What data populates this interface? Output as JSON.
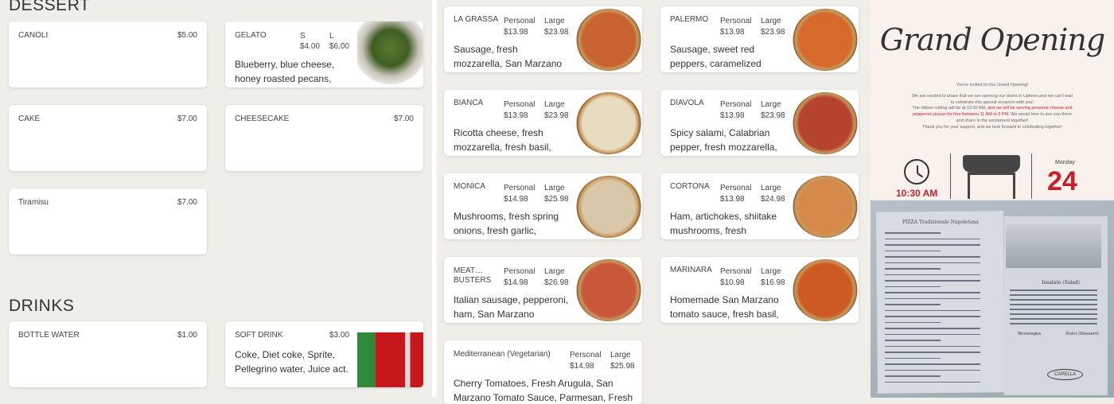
{
  "dessert": {
    "heading": "DESSERT",
    "items": [
      {
        "name": "CANOLI",
        "price": "$5.00"
      },
      {
        "name": "GELATO",
        "size_s": "S",
        "size_l": "L",
        "price_s": "$4.00",
        "price_l": "$6.00",
        "desc": "Blueberry, blue cheese, honey roasted pecans, spring mix,…"
      },
      {
        "name": "CAKE",
        "price": "$7.00"
      },
      {
        "name": "CHEESECAKE",
        "price": "$7.00"
      },
      {
        "name": "Tiramisu",
        "price": "$7.00"
      }
    ]
  },
  "drinks": {
    "heading": "DRINKS",
    "items": [
      {
        "name": "BOTTLE WATER",
        "price": "$1.00"
      },
      {
        "name": "SOFT DRINK",
        "price": "$3.00",
        "desc": "Coke, Diet coke, Sprite, Pellegrino water, Juice act."
      }
    ]
  },
  "pizzas": [
    {
      "name": "LA GRASSA",
      "p": "$13.98",
      "l": "$23.98",
      "desc": "Sausage, fresh mozzarella, San Marzano sauce, fresh…"
    },
    {
      "name": "PALERMO",
      "p": "$13.98",
      "l": "$23.98",
      "desc": "Sausage, sweet red peppers, caramelized Cipollini onion,…"
    },
    {
      "name": "BIANCA",
      "p": "$13.98",
      "l": "$23.98",
      "desc": "Ricotta cheese, fresh mozzarella, fresh basil, fresh…"
    },
    {
      "name": "DIAVOLA",
      "p": "$13.98",
      "l": "$23.98",
      "desc": "Spicy salami, Calabrian pepper, fresh mozzarella, Sa…"
    },
    {
      "name": "MONICA",
      "p": "$14.98",
      "l": "$25.98",
      "desc": "Mushrooms, fresh spring onions, fresh garlic, fresh…"
    },
    {
      "name": "CORTONA",
      "p": "$13.98",
      "l": "$24.98",
      "desc": "Ham, artichokes, shiitake mushrooms, fresh mozzarell…"
    },
    {
      "name": "MEAT… BUSTERS",
      "p": "$14.98",
      "l": "$26.98",
      "desc": "Italian sausage, pepperoni, ham, San Marzano tomato…"
    },
    {
      "name": "MARINARA",
      "p": "$10.98",
      "l": "$16.98",
      "desc": "Homemade San Marzano tomato sauce, fresh basil, oli…"
    }
  ],
  "size_labels": {
    "personal": "Personal",
    "large": "Large"
  },
  "mediterranean": {
    "name": "Mediterranean (Vegetarian)",
    "p": "$14.98",
    "l": "$25.98",
    "desc": "Cherry Tomatoes, Fresh Arugula, San Marzano Tomato Sauce, Parmesan, Fresh Buffalo…"
  },
  "poster": {
    "title": "Grand Opening",
    "invite": "You're Invited to Our Grand Opening!",
    "body1": "We are excited to share that we are opening our doors in Uptown,and we can't wait to celebrate this special occasion with you!",
    "body2a": "The ribbon cutting will be at 10:30 AM,",
    "body2b": "and we will be serving personal cheese and pepperoni pizzas for free between 11 AM to 2 PM.",
    "body3": "We would love to see you there and share in the excitement together!",
    "body4": "Thank you for your support, and we look forward to celebrating together!",
    "time": "10:30 AM",
    "day": "Monday",
    "date": "24",
    "accent": "#c8202a"
  },
  "menu_photo": {
    "title": "PIZZA Tradizionale Napoletana",
    "section1": "Insalata (Salad)",
    "section2": "Beverages",
    "section3": "Dolci (Dessert)",
    "logo": "CAPELLA"
  }
}
